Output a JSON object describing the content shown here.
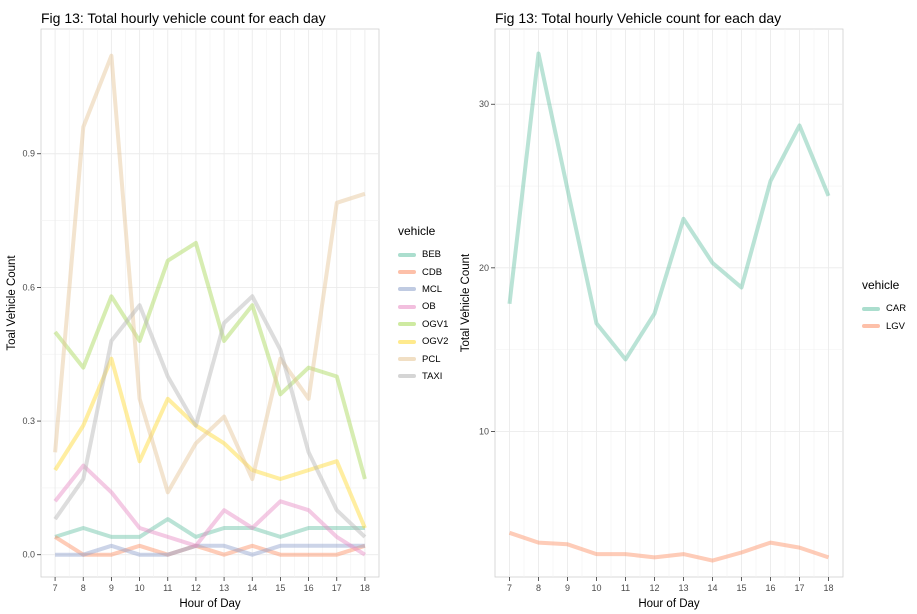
{
  "chart_data": [
    {
      "type": "line",
      "title": "Fig 13: Total hourly vehicle count for each day",
      "xlabel": "Hour of Day",
      "ylabel": "Toal Vehicle Count",
      "x": [
        7,
        8,
        9,
        10,
        11,
        12,
        13,
        14,
        15,
        16,
        17,
        18
      ],
      "xlim": [
        6.5,
        18.5
      ],
      "ylim": [
        -0.05,
        1.18
      ],
      "yticks": [
        0.0,
        0.3,
        0.6,
        0.9
      ],
      "ytick_labels": [
        "0.0",
        "0.3",
        "0.6",
        "0.9"
      ],
      "grid": true,
      "legend_title": "vehicle",
      "legend_position": "right",
      "series": [
        {
          "name": "BEB",
          "color": "#66c2a5",
          "values": [
            0.04,
            0.06,
            0.04,
            0.04,
            0.08,
            0.04,
            0.06,
            0.06,
            0.04,
            0.06,
            0.06,
            0.06
          ]
        },
        {
          "name": "CDB",
          "color": "#fc8d62",
          "values": [
            0.04,
            0.0,
            0.0,
            0.02,
            0.0,
            0.02,
            0.0,
            0.02,
            0.0,
            0.0,
            0.0,
            0.02
          ]
        },
        {
          "name": "MCL",
          "color": "#8da0cb",
          "values": [
            0.0,
            0.0,
            0.02,
            0.0,
            0.0,
            0.02,
            0.02,
            0.0,
            0.02,
            0.02,
            0.02,
            0.02
          ]
        },
        {
          "name": "OB",
          "color": "#e78ac3",
          "values": [
            0.12,
            0.2,
            0.14,
            0.06,
            0.04,
            0.02,
            0.1,
            0.06,
            0.12,
            0.1,
            0.04,
            0.0
          ]
        },
        {
          "name": "OGV1",
          "color": "#a6d854",
          "values": [
            0.5,
            0.42,
            0.58,
            0.48,
            0.66,
            0.7,
            0.48,
            0.56,
            0.36,
            0.42,
            0.4,
            0.17
          ]
        },
        {
          "name": "OGV2",
          "color": "#ffd92f",
          "values": [
            0.19,
            0.29,
            0.44,
            0.21,
            0.35,
            0.29,
            0.25,
            0.19,
            0.17,
            0.19,
            0.21,
            0.06
          ]
        },
        {
          "name": "PCL",
          "color": "#e5c494",
          "values": [
            0.23,
            0.96,
            1.12,
            0.35,
            0.14,
            0.25,
            0.31,
            0.17,
            0.44,
            0.35,
            0.79,
            0.81
          ]
        },
        {
          "name": "TAXI",
          "color": "#b3b3b3",
          "values": [
            0.08,
            0.17,
            0.48,
            0.56,
            0.4,
            0.29,
            0.52,
            0.58,
            0.46,
            0.23,
            0.1,
            0.04
          ]
        }
      ]
    },
    {
      "type": "line",
      "title": "Fig 13: Total hourly Vehicle count for each day",
      "xlabel": "Hour of Day",
      "ylabel": "Total Vehicle Count",
      "x": [
        7,
        8,
        9,
        10,
        11,
        12,
        13,
        14,
        15,
        16,
        17,
        18
      ],
      "xlim": [
        6.5,
        18.5
      ],
      "ylim": [
        1.1,
        34.6
      ],
      "yticks": [
        10,
        20,
        30
      ],
      "ytick_labels": [
        "10",
        "20",
        "30"
      ],
      "grid": true,
      "legend_title": "vehicle",
      "legend_position": "right",
      "series": [
        {
          "name": "CAR",
          "color": "#66c2a5",
          "values": [
            17.8,
            33.1,
            24.8,
            16.6,
            14.4,
            17.2,
            23.0,
            20.3,
            18.8,
            25.3,
            28.7,
            24.4
          ]
        },
        {
          "name": "LGV",
          "color": "#fc8d62",
          "values": [
            3.8,
            3.2,
            3.1,
            2.5,
            2.5,
            2.3,
            2.5,
            2.1,
            2.6,
            3.2,
            2.9,
            2.3
          ]
        }
      ]
    }
  ]
}
